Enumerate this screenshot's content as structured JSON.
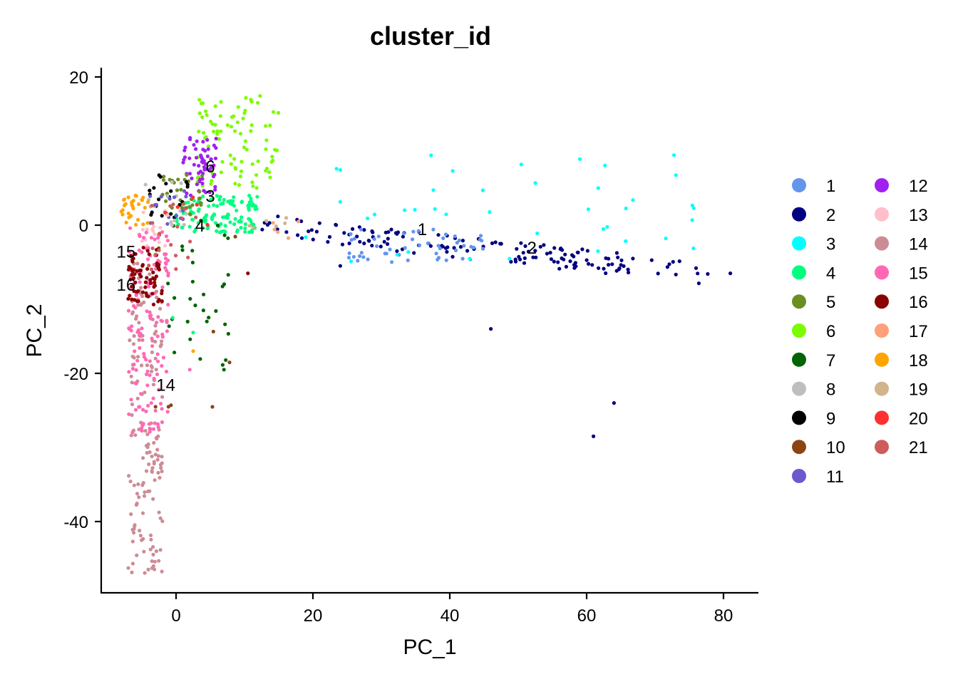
{
  "chart_data": {
    "type": "scatter",
    "title": "cluster_id",
    "xlabel": "PC_1",
    "ylabel": "PC_2",
    "xlim": [
      -11,
      85
    ],
    "ylim": [
      -50,
      22
    ],
    "xticks": [
      0,
      20,
      40,
      60,
      80
    ],
    "yticks": [
      20,
      0,
      -20,
      -40
    ],
    "grid": false,
    "legend_position": "right",
    "legend_columns": 2,
    "clusters": [
      {
        "name": "1",
        "color": "#6495ED"
      },
      {
        "name": "2",
        "color": "#000080"
      },
      {
        "name": "3",
        "color": "#00FFFF"
      },
      {
        "name": "4",
        "color": "#00FF7F"
      },
      {
        "name": "5",
        "color": "#6B8E23"
      },
      {
        "name": "6",
        "color": "#7CFC00"
      },
      {
        "name": "7",
        "color": "#006400"
      },
      {
        "name": "8",
        "color": "#BEBEBE"
      },
      {
        "name": "9",
        "color": "#000000"
      },
      {
        "name": "10",
        "color": "#8B4513"
      },
      {
        "name": "11",
        "color": "#6A5ACD"
      },
      {
        "name": "12",
        "color": "#A020F0"
      },
      {
        "name": "13",
        "color": "#FFC0CB"
      },
      {
        "name": "14",
        "color": "#CD8C95"
      },
      {
        "name": "15",
        "color": "#FF69B4"
      },
      {
        "name": "16",
        "color": "#8B0000"
      },
      {
        "name": "17",
        "color": "#FFA07A"
      },
      {
        "name": "18",
        "color": "#FFA500"
      },
      {
        "name": "19",
        "color": "#D2B48C"
      },
      {
        "name": "20",
        "color": "#FF3030"
      },
      {
        "name": "21",
        "color": "#CD5C5C"
      }
    ],
    "cluster_labels": [
      {
        "text": "1",
        "x": 36,
        "y": -0.5
      },
      {
        "text": "2",
        "x": 52,
        "y": -3
      },
      {
        "text": "3",
        "x": 5,
        "y": 4
      },
      {
        "text": "4",
        "x": 3.5,
        "y": 0
      },
      {
        "text": "6",
        "x": 5,
        "y": 8
      },
      {
        "text": "15",
        "x": -7.3,
        "y": -3.5
      },
      {
        "text": "16",
        "x": -7.3,
        "y": -8
      },
      {
        "text": "14",
        "x": -1.5,
        "y": -21.5
      }
    ],
    "point_groups": [
      {
        "cluster": "2",
        "n": 150,
        "x": [
          12,
          78
        ],
        "y": [
          -8,
          1
        ],
        "trend": "-0.1"
      },
      {
        "cluster": "1",
        "n": 50,
        "x": [
          25,
          45
        ],
        "y": [
          -5,
          -0.5
        ]
      },
      {
        "cluster": "3",
        "n": 40,
        "x": [
          15,
          78
        ],
        "y": [
          -5,
          10
        ]
      },
      {
        "cluster": "4",
        "n": 120,
        "x": [
          0,
          12
        ],
        "y": [
          -1,
          4
        ]
      },
      {
        "cluster": "6",
        "n": 90,
        "x": [
          3,
          15
        ],
        "y": [
          5,
          18
        ]
      },
      {
        "cluster": "12",
        "n": 60,
        "x": [
          1,
          6
        ],
        "y": [
          4,
          12
        ]
      },
      {
        "cluster": "5",
        "n": 30,
        "x": [
          -2,
          4
        ],
        "y": [
          1,
          7
        ]
      },
      {
        "cluster": "7",
        "n": 30,
        "x": [
          -2,
          8
        ],
        "y": [
          -20,
          3
        ]
      },
      {
        "cluster": "9",
        "n": 20,
        "x": [
          -4,
          2
        ],
        "y": [
          1,
          7
        ]
      },
      {
        "cluster": "8",
        "n": 15,
        "x": [
          -5,
          2
        ],
        "y": [
          0,
          6
        ]
      },
      {
        "cluster": "11",
        "n": 15,
        "x": [
          -4,
          2
        ],
        "y": [
          0,
          5
        ]
      },
      {
        "cluster": "10",
        "n": 8,
        "x": [
          -3,
          10
        ],
        "y": [
          -25,
          5
        ]
      },
      {
        "cluster": "13",
        "n": 15,
        "x": [
          -5,
          -1
        ],
        "y": [
          -3,
          2
        ]
      },
      {
        "cluster": "14",
        "n": 160,
        "x": [
          -7,
          -2
        ],
        "y": [
          -47,
          -5
        ]
      },
      {
        "cluster": "15",
        "n": 140,
        "x": [
          -7,
          -1
        ],
        "y": [
          -28,
          0
        ]
      },
      {
        "cluster": "16",
        "n": 70,
        "x": [
          -7,
          -2
        ],
        "y": [
          -11,
          -3
        ]
      },
      {
        "cluster": "17",
        "n": 5,
        "x": [
          12,
          18
        ],
        "y": [
          -2,
          1
        ]
      },
      {
        "cluster": "18",
        "n": 30,
        "x": [
          -8,
          -4
        ],
        "y": [
          0,
          4
        ]
      },
      {
        "cluster": "19",
        "n": 6,
        "x": [
          10,
          18
        ],
        "y": [
          -2,
          1
        ]
      },
      {
        "cluster": "20",
        "n": 6,
        "x": [
          -2,
          5
        ],
        "y": [
          -1,
          4
        ]
      },
      {
        "cluster": "21",
        "n": 20,
        "x": [
          -4,
          3
        ],
        "y": [
          -6,
          3
        ]
      }
    ],
    "outliers": [
      {
        "cluster": "2",
        "x": 46,
        "y": -14
      },
      {
        "cluster": "2",
        "x": 64,
        "y": -24
      },
      {
        "cluster": "2",
        "x": 61,
        "y": -28.5
      },
      {
        "cluster": "2",
        "x": 81,
        "y": -6.5
      },
      {
        "cluster": "7",
        "x": 7,
        "y": -19.5
      },
      {
        "cluster": "7",
        "x": 4.5,
        "y": -13
      },
      {
        "cluster": "7",
        "x": 4,
        "y": -11.5
      },
      {
        "cluster": "4",
        "x": 2.5,
        "y": -14.5
      },
      {
        "cluster": "4",
        "x": -0.5,
        "y": -12.5
      },
      {
        "cluster": "18",
        "x": 2.5,
        "y": -17
      },
      {
        "cluster": "15",
        "x": 2,
        "y": -19.5
      },
      {
        "cluster": "10",
        "x": -3,
        "y": -24.5
      },
      {
        "cluster": "16",
        "x": 10.5,
        "y": -6.5
      },
      {
        "cluster": "2",
        "x": 24,
        "y": -5.5
      }
    ]
  }
}
